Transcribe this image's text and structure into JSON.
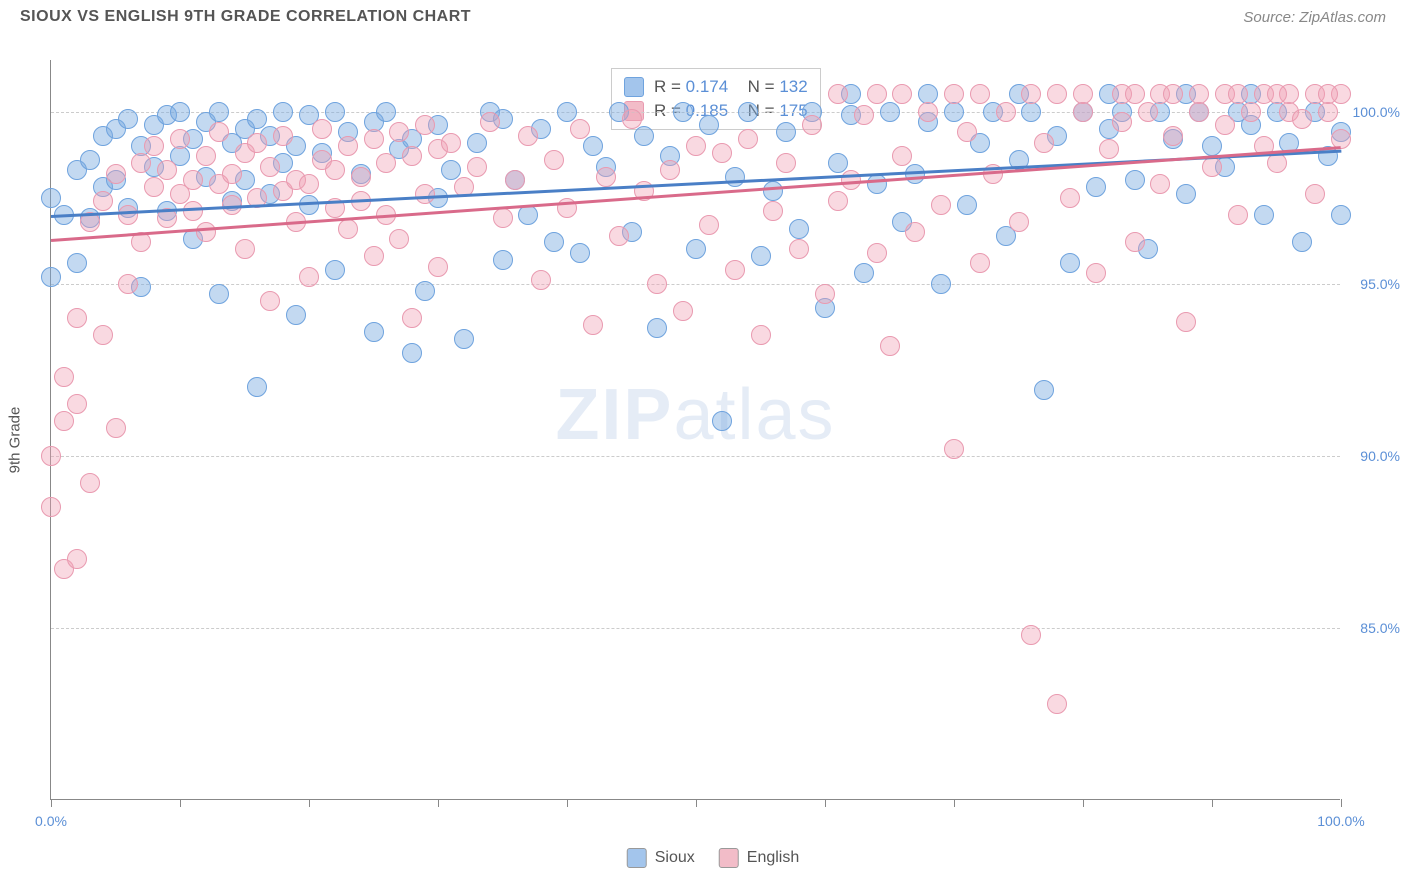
{
  "header": {
    "title": "SIOUX VS ENGLISH 9TH GRADE CORRELATION CHART",
    "source_prefix": "Source: ",
    "source_link": "ZipAtlas.com"
  },
  "watermark": {
    "zip": "ZIP",
    "atlas": "atlas"
  },
  "chart": {
    "type": "scatter",
    "yaxis_title": "9th Grade",
    "xlim": [
      0,
      100
    ],
    "ylim": [
      80,
      101.5
    ],
    "xtick_positions": [
      0,
      10,
      20,
      30,
      40,
      50,
      60,
      70,
      80,
      90,
      100
    ],
    "xtick_labels": {
      "0": "0.0%",
      "100": "100.0%"
    },
    "ytick_positions": [
      85,
      90,
      95,
      100
    ],
    "ytick_labels": [
      "85.0%",
      "90.0%",
      "95.0%",
      "100.0%"
    ],
    "grid_color": "#cccccc",
    "plot_bg": "#ffffff",
    "axis_color": "#888888",
    "series": [
      {
        "name": "Sioux",
        "color_fill": "rgba(122, 171, 224, 0.45)",
        "color_stroke": "#6fa3de",
        "swatch": "#a3c5ec",
        "marker_radius": 10,
        "R": "0.174",
        "N": "132",
        "trend": {
          "x1": 0,
          "y1": 97.0,
          "x2": 100,
          "y2": 98.9,
          "color": "#4a7fc6"
        },
        "points": [
          [
            0,
            95.2
          ],
          [
            0,
            97.5
          ],
          [
            1,
            97.0
          ],
          [
            2,
            98.3
          ],
          [
            2,
            95.6
          ],
          [
            3,
            96.9
          ],
          [
            3,
            98.6
          ],
          [
            4,
            99.3
          ],
          [
            4,
            97.8
          ],
          [
            5,
            99.5
          ],
          [
            5,
            98.0
          ],
          [
            6,
            99.8
          ],
          [
            6,
            97.2
          ],
          [
            7,
            94.9
          ],
          [
            7,
            99.0
          ],
          [
            8,
            99.6
          ],
          [
            8,
            98.4
          ],
          [
            9,
            99.9
          ],
          [
            9,
            97.1
          ],
          [
            10,
            100.0
          ],
          [
            10,
            98.7
          ],
          [
            11,
            99.2
          ],
          [
            11,
            96.3
          ],
          [
            12,
            99.7
          ],
          [
            12,
            98.1
          ],
          [
            13,
            94.7
          ],
          [
            13,
            100.0
          ],
          [
            14,
            99.1
          ],
          [
            14,
            97.4
          ],
          [
            15,
            99.5
          ],
          [
            15,
            98.0
          ],
          [
            16,
            92.0
          ],
          [
            16,
            99.8
          ],
          [
            17,
            97.6
          ],
          [
            17,
            99.3
          ],
          [
            18,
            100.0
          ],
          [
            18,
            98.5
          ],
          [
            19,
            99.0
          ],
          [
            19,
            94.1
          ],
          [
            20,
            99.9
          ],
          [
            20,
            97.3
          ],
          [
            21,
            98.8
          ],
          [
            22,
            100.0
          ],
          [
            22,
            95.4
          ],
          [
            23,
            99.4
          ],
          [
            24,
            98.2
          ],
          [
            25,
            99.7
          ],
          [
            25,
            93.6
          ],
          [
            26,
            100.0
          ],
          [
            27,
            98.9
          ],
          [
            28,
            93.0
          ],
          [
            28,
            99.2
          ],
          [
            29,
            94.8
          ],
          [
            30,
            99.6
          ],
          [
            30,
            97.5
          ],
          [
            31,
            98.3
          ],
          [
            32,
            93.4
          ],
          [
            33,
            99.1
          ],
          [
            34,
            100.0
          ],
          [
            35,
            95.7
          ],
          [
            35,
            99.8
          ],
          [
            36,
            98.0
          ],
          [
            37,
            97.0
          ],
          [
            38,
            99.5
          ],
          [
            39,
            96.2
          ],
          [
            40,
            100.0
          ],
          [
            41,
            95.9
          ],
          [
            42,
            99.0
          ],
          [
            43,
            98.4
          ],
          [
            44,
            100.0
          ],
          [
            45,
            96.5
          ],
          [
            46,
            99.3
          ],
          [
            47,
            93.7
          ],
          [
            48,
            98.7
          ],
          [
            49,
            100.0
          ],
          [
            50,
            96.0
          ],
          [
            51,
            99.6
          ],
          [
            52,
            91.0
          ],
          [
            53,
            98.1
          ],
          [
            54,
            100.0
          ],
          [
            55,
            95.8
          ],
          [
            56,
            97.7
          ],
          [
            57,
            99.4
          ],
          [
            58,
            96.6
          ],
          [
            59,
            100.0
          ],
          [
            60,
            94.3
          ],
          [
            61,
            98.5
          ],
          [
            62,
            99.9
          ],
          [
            63,
            95.3
          ],
          [
            64,
            97.9
          ],
          [
            65,
            100.0
          ],
          [
            66,
            96.8
          ],
          [
            67,
            98.2
          ],
          [
            68,
            99.7
          ],
          [
            69,
            95.0
          ],
          [
            70,
            100.0
          ],
          [
            71,
            97.3
          ],
          [
            72,
            99.1
          ],
          [
            73,
            100.0
          ],
          [
            74,
            96.4
          ],
          [
            75,
            98.6
          ],
          [
            76,
            100.0
          ],
          [
            77,
            91.9
          ],
          [
            78,
            99.3
          ],
          [
            79,
            95.6
          ],
          [
            80,
            100.0
          ],
          [
            81,
            97.8
          ],
          [
            82,
            99.5
          ],
          [
            83,
            100.0
          ],
          [
            84,
            98.0
          ],
          [
            85,
            96.0
          ],
          [
            86,
            100.0
          ],
          [
            87,
            99.2
          ],
          [
            88,
            97.6
          ],
          [
            89,
            100.0
          ],
          [
            90,
            99.0
          ],
          [
            91,
            98.4
          ],
          [
            92,
            100.0
          ],
          [
            93,
            99.6
          ],
          [
            94,
            97.0
          ],
          [
            95,
            100.0
          ],
          [
            96,
            99.1
          ],
          [
            97,
            96.2
          ],
          [
            98,
            100.0
          ],
          [
            99,
            98.7
          ],
          [
            100,
            99.4
          ],
          [
            100,
            97.0
          ],
          [
            62,
            100.5
          ],
          [
            68,
            100.5
          ],
          [
            75,
            100.5
          ],
          [
            82,
            100.5
          ],
          [
            88,
            100.5
          ],
          [
            93,
            100.5
          ]
        ]
      },
      {
        "name": "English",
        "color_fill": "rgba(240, 160, 180, 0.40)",
        "color_stroke": "#e99ab0",
        "swatch": "#f2bcc8",
        "marker_radius": 10,
        "R": "0.185",
        "N": "175",
        "trend": {
          "x1": 0,
          "y1": 96.3,
          "x2": 100,
          "y2": 99.0,
          "color": "#d96a8a"
        },
        "points": [
          [
            0,
            90.0
          ],
          [
            0,
            88.5
          ],
          [
            1,
            86.7
          ],
          [
            1,
            92.3
          ],
          [
            2,
            91.5
          ],
          [
            2,
            94.0
          ],
          [
            3,
            89.2
          ],
          [
            3,
            96.8
          ],
          [
            4,
            93.5
          ],
          [
            4,
            97.4
          ],
          [
            5,
            90.8
          ],
          [
            5,
            98.2
          ],
          [
            6,
            95.0
          ],
          [
            6,
            97.0
          ],
          [
            7,
            98.5
          ],
          [
            7,
            96.2
          ],
          [
            8,
            97.8
          ],
          [
            8,
            99.0
          ],
          [
            9,
            98.3
          ],
          [
            9,
            96.9
          ],
          [
            10,
            97.6
          ],
          [
            10,
            99.2
          ],
          [
            11,
            98.0
          ],
          [
            11,
            97.1
          ],
          [
            12,
            98.7
          ],
          [
            12,
            96.5
          ],
          [
            13,
            97.9
          ],
          [
            13,
            99.4
          ],
          [
            14,
            98.2
          ],
          [
            14,
            97.3
          ],
          [
            15,
            98.8
          ],
          [
            15,
            96.0
          ],
          [
            16,
            97.5
          ],
          [
            16,
            99.1
          ],
          [
            17,
            98.4
          ],
          [
            17,
            94.5
          ],
          [
            18,
            97.7
          ],
          [
            18,
            99.3
          ],
          [
            19,
            98.0
          ],
          [
            19,
            96.8
          ],
          [
            20,
            97.9
          ],
          [
            20,
            95.2
          ],
          [
            21,
            98.6
          ],
          [
            21,
            99.5
          ],
          [
            22,
            97.2
          ],
          [
            22,
            98.3
          ],
          [
            23,
            96.6
          ],
          [
            23,
            99.0
          ],
          [
            24,
            98.1
          ],
          [
            24,
            97.4
          ],
          [
            25,
            99.2
          ],
          [
            25,
            95.8
          ],
          [
            26,
            98.5
          ],
          [
            26,
            97.0
          ],
          [
            27,
            99.4
          ],
          [
            27,
            96.3
          ],
          [
            28,
            98.7
          ],
          [
            28,
            94.0
          ],
          [
            29,
            99.6
          ],
          [
            29,
            97.6
          ],
          [
            30,
            98.9
          ],
          [
            30,
            95.5
          ],
          [
            31,
            99.1
          ],
          [
            32,
            97.8
          ],
          [
            33,
            98.4
          ],
          [
            34,
            99.7
          ],
          [
            35,
            96.9
          ],
          [
            36,
            98.0
          ],
          [
            37,
            99.3
          ],
          [
            38,
            95.1
          ],
          [
            39,
            98.6
          ],
          [
            40,
            97.2
          ],
          [
            41,
            99.5
          ],
          [
            42,
            93.8
          ],
          [
            43,
            98.1
          ],
          [
            44,
            96.4
          ],
          [
            45,
            99.8
          ],
          [
            46,
            97.7
          ],
          [
            47,
            95.0
          ],
          [
            48,
            98.3
          ],
          [
            49,
            94.2
          ],
          [
            50,
            99.0
          ],
          [
            51,
            96.7
          ],
          [
            52,
            98.8
          ],
          [
            53,
            95.4
          ],
          [
            54,
            99.2
          ],
          [
            55,
            93.5
          ],
          [
            56,
            97.1
          ],
          [
            57,
            98.5
          ],
          [
            58,
            96.0
          ],
          [
            59,
            99.6
          ],
          [
            60,
            94.7
          ],
          [
            61,
            97.4
          ],
          [
            62,
            98.0
          ],
          [
            63,
            99.9
          ],
          [
            64,
            95.9
          ],
          [
            65,
            93.2
          ],
          [
            66,
            98.7
          ],
          [
            67,
            96.5
          ],
          [
            68,
            100.0
          ],
          [
            69,
            97.3
          ],
          [
            70,
            90.2
          ],
          [
            71,
            99.4
          ],
          [
            72,
            95.6
          ],
          [
            73,
            98.2
          ],
          [
            74,
            100.0
          ],
          [
            75,
            96.8
          ],
          [
            76,
            84.8
          ],
          [
            77,
            99.1
          ],
          [
            78,
            82.8
          ],
          [
            79,
            97.5
          ],
          [
            80,
            100.0
          ],
          [
            81,
            95.3
          ],
          [
            82,
            98.9
          ],
          [
            83,
            99.7
          ],
          [
            84,
            96.2
          ],
          [
            85,
            100.0
          ],
          [
            86,
            97.9
          ],
          [
            87,
            99.3
          ],
          [
            88,
            93.9
          ],
          [
            89,
            100.0
          ],
          [
            90,
            98.4
          ],
          [
            91,
            99.6
          ],
          [
            92,
            97.0
          ],
          [
            93,
            100.0
          ],
          [
            94,
            99.0
          ],
          [
            95,
            98.5
          ],
          [
            96,
            100.0
          ],
          [
            97,
            99.8
          ],
          [
            98,
            97.6
          ],
          [
            99,
            100.0
          ],
          [
            100,
            99.2
          ],
          [
            64,
            100.5
          ],
          [
            70,
            100.5
          ],
          [
            76,
            100.5
          ],
          [
            78,
            100.5
          ],
          [
            83,
            100.5
          ],
          [
            86,
            100.5
          ],
          [
            89,
            100.5
          ],
          [
            91,
            100.5
          ],
          [
            94,
            100.5
          ],
          [
            96,
            100.5
          ],
          [
            98,
            100.5
          ],
          [
            100,
            100.5
          ],
          [
            61,
            100.5
          ],
          [
            66,
            100.5
          ],
          [
            72,
            100.5
          ],
          [
            80,
            100.5
          ],
          [
            87,
            100.5
          ],
          [
            92,
            100.5
          ],
          [
            95,
            100.5
          ],
          [
            99,
            100.5
          ],
          [
            84,
            100.5
          ],
          [
            1,
            91.0
          ],
          [
            2,
            87.0
          ]
        ]
      }
    ],
    "legend": {
      "items": [
        {
          "label": "Sioux",
          "swatch": "#a3c5ec"
        },
        {
          "label": "English",
          "swatch": "#f2bcc8"
        }
      ]
    },
    "statbox": {
      "r_label": "R = ",
      "n_label": "N = "
    }
  }
}
